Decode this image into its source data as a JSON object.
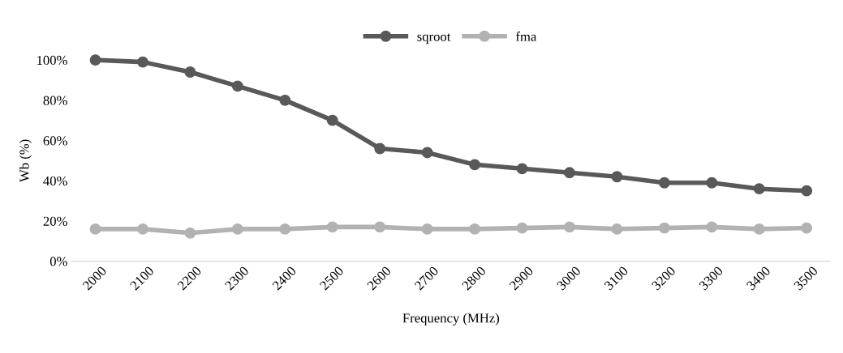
{
  "chart_data": {
    "type": "line",
    "xlabel": "Frequency (MHz)",
    "ylabel": "Wb (%)",
    "categories": [
      "2000",
      "2100",
      "2200",
      "2300",
      "2400",
      "2500",
      "2600",
      "2700",
      "2800",
      "2900",
      "3000",
      "3100",
      "3200",
      "3300",
      "3400",
      "3500"
    ],
    "series": [
      {
        "name": "sqroot",
        "color": "#595959",
        "values": [
          100,
          99,
          94,
          87,
          80,
          70,
          56,
          54,
          48,
          46,
          44,
          42,
          39,
          39,
          36,
          35
        ]
      },
      {
        "name": "fma",
        "color": "#b2b2b2",
        "values": [
          16,
          16,
          14,
          16,
          16,
          17,
          17,
          16,
          16,
          16.5,
          17,
          16,
          16.5,
          17,
          16,
          16.5
        ]
      }
    ],
    "ylim": [
      0,
      100
    ],
    "yticks": [
      {
        "value": 0,
        "label": "0%"
      },
      {
        "value": 20,
        "label": "20%"
      },
      {
        "value": 40,
        "label": "40%"
      },
      {
        "value": 60,
        "label": "60%"
      },
      {
        "value": 80,
        "label": "80%"
      },
      {
        "value": 100,
        "label": "100%"
      }
    ],
    "grid": false,
    "legend": "top",
    "marker": "circle",
    "line_style": "solid"
  }
}
